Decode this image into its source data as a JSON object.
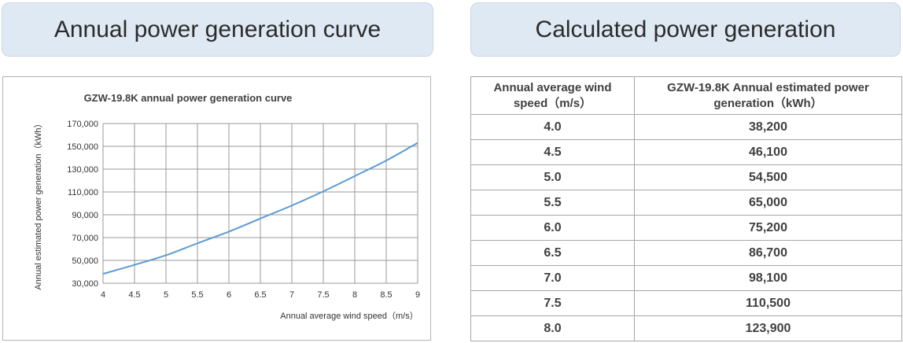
{
  "headers": {
    "left": "Annual power generation curve",
    "right": "Calculated power generation"
  },
  "table": {
    "columns": [
      "Annual average wind speed（m/s）",
      "GZW-19.8K Annual estimated power generation（kWh）"
    ],
    "rows": [
      [
        "4.0",
        "38,200"
      ],
      [
        "4.5",
        "46,100"
      ],
      [
        "5.0",
        "54,500"
      ],
      [
        "5.5",
        "65,000"
      ],
      [
        "6.0",
        "75,200"
      ],
      [
        "6.5",
        "86,700"
      ],
      [
        "7.0",
        "98,100"
      ],
      [
        "7.5",
        "110,500"
      ],
      [
        "8.0",
        "123,900"
      ]
    ]
  },
  "chart_data": {
    "type": "line",
    "title": "GZW-19.8K annual power generation curve",
    "xlabel": "Annual average wind speed（m/s）",
    "ylabel": "Annual estimated power generation（kWh）",
    "x_tick_labels": [
      "4",
      "4.5",
      "5",
      "5.5",
      "6",
      "6.5",
      "7",
      "7.5",
      "8",
      "8.5",
      "9"
    ],
    "y_tick_labels": [
      "30,000",
      "50,000",
      "70,000",
      "90,000",
      "110,000",
      "130,000",
      "150,000",
      "170,000"
    ],
    "xlim": [
      4,
      9
    ],
    "ylim": [
      30000,
      170000
    ],
    "grid": true,
    "line_color": "#5b9bd5",
    "series": [
      {
        "x": [
          4.0,
          4.5,
          5.0,
          5.5,
          6.0,
          6.5,
          7.0,
          7.5,
          8.0,
          8.5,
          9.0
        ],
        "values": [
          38200,
          46100,
          54500,
          65000,
          75200,
          86700,
          98100,
          110500,
          123900,
          137500,
          153000
        ]
      }
    ]
  }
}
